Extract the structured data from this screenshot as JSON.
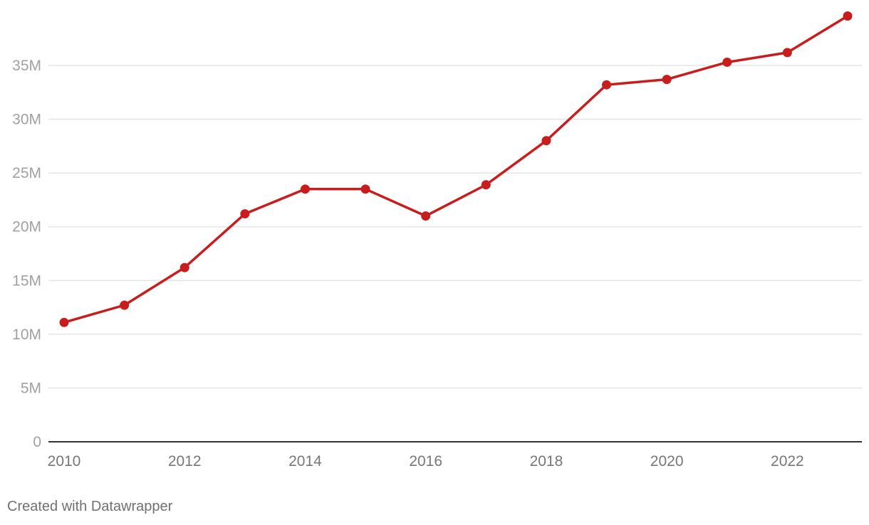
{
  "chart_data": {
    "type": "line",
    "x": [
      2010,
      2011,
      2012,
      2013,
      2014,
      2015,
      2016,
      2017,
      2018,
      2019,
      2020,
      2021,
      2022,
      2023
    ],
    "series": [
      {
        "values": [
          11.1,
          12.7,
          16.2,
          21.2,
          23.5,
          23.5,
          21.0,
          23.9,
          28.0,
          33.2,
          33.7,
          35.3,
          36.2,
          39.6
        ]
      }
    ],
    "xlim": [
      2010,
      2023
    ],
    "ylim": [
      0,
      40
    ],
    "y_unit": "M",
    "yticks": [
      "0",
      "5M",
      "10M",
      "15M",
      "20M",
      "25M",
      "30M",
      "35M"
    ],
    "xticks": [
      "2010",
      "2012",
      "2014",
      "2016",
      "2018",
      "2020",
      "2022"
    ],
    "grid": true,
    "colors": {
      "line": "#c71e1d",
      "grid": "#e5e5e5",
      "axis": "#333333"
    }
  },
  "footer": {
    "credit": "Created with Datawrapper"
  }
}
